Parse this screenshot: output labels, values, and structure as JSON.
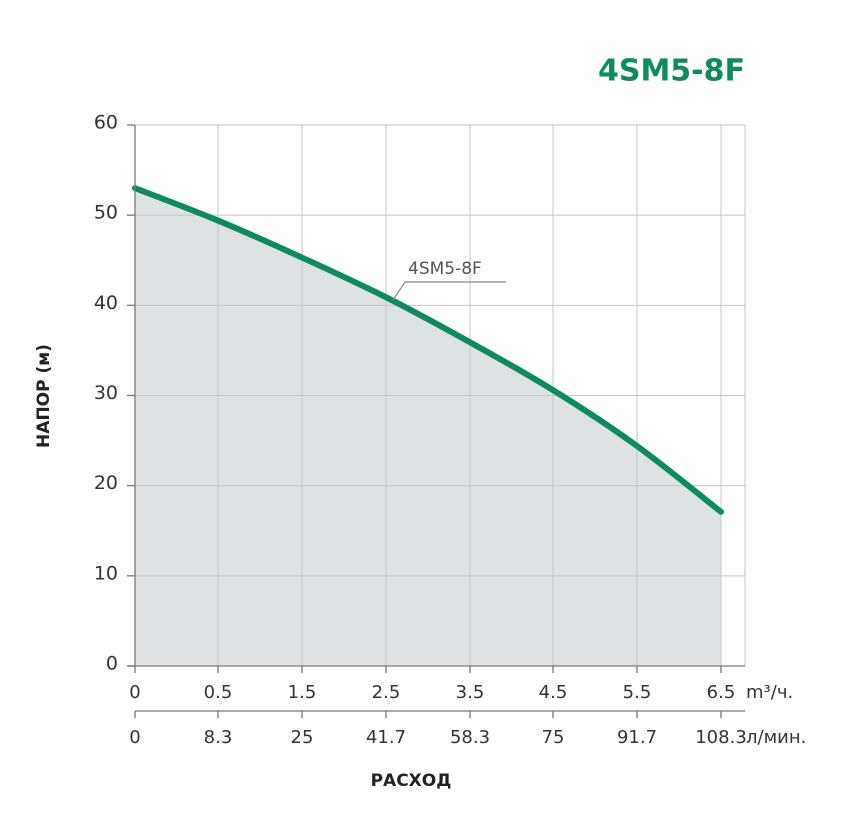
{
  "chart_data": {
    "type": "line",
    "title": "4SM5-8F",
    "ylabel": "НАПОР (м)",
    "xlabel": "РАСХОД",
    "x_unit": "m³/ч.",
    "x2_unit": "л/мин.",
    "categories": [
      "0",
      "0.5",
      "1.5",
      "2.5",
      "3.5",
      "4.5",
      "5.5",
      "6.5"
    ],
    "categories_secondary": [
      "0",
      "8.3",
      "25",
      "41.7",
      "58.3",
      "75",
      "91.7",
      "108.3"
    ],
    "series": [
      {
        "name": "4SM5-8F",
        "color": "#0f8a5f",
        "values": [
          53,
          49.4,
          45.3,
          40.9,
          35.9,
          30.6,
          24.4,
          17.1
        ]
      }
    ],
    "area_color": "#dde3e5",
    "ylim": [
      0,
      60
    ],
    "yticks": [
      0,
      10,
      20,
      30,
      40,
      50,
      60
    ],
    "grid": true
  }
}
